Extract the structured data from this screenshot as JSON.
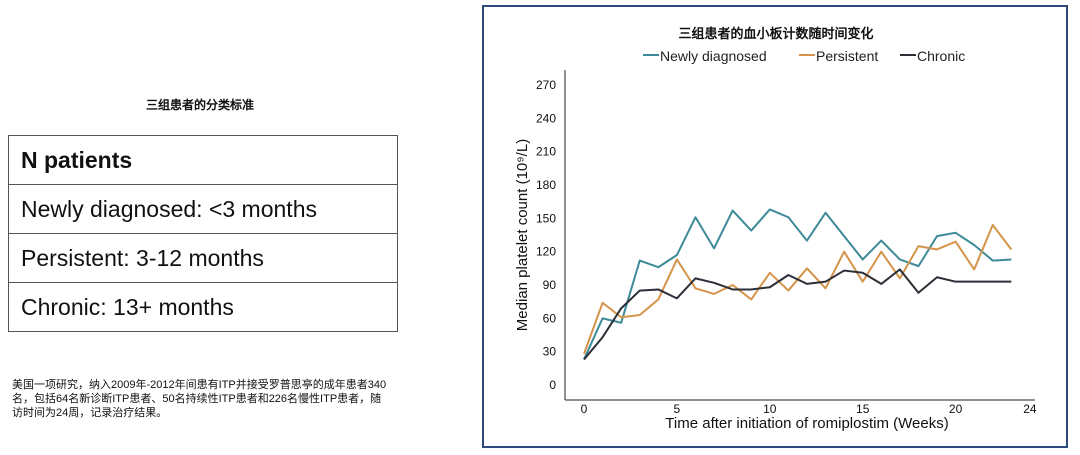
{
  "left": {
    "title": "三组患者的分类标准",
    "table": [
      "N patients",
      "Newly diagnosed: <3 months",
      "Persistent: 3-12 months",
      "Chronic: 13+ months"
    ],
    "note": "美国一项研究，纳入2009年-2012年间患有ITP并接受罗普思亭的成年患者340名，包括64名新诊断ITP患者、50名持续性ITP患者和226名慢性ITP患者，随访时间为24周，记录治疗结果。"
  },
  "chart_data": {
    "type": "line",
    "title": "三组患者的血小板计数随时间变化",
    "xlabel": "Time after initiation of romiplostim (Weeks)",
    "ylabel": "Median platelet count (10⁹/L)",
    "xlim": [
      -1,
      24
    ],
    "ylim": [
      0,
      270
    ],
    "xticks": [
      0,
      5,
      10,
      15,
      20,
      24
    ],
    "yticks": [
      0,
      30,
      60,
      90,
      120,
      150,
      180,
      210,
      240,
      270
    ],
    "legend_position": "top",
    "grid": false,
    "x": [
      0,
      1,
      2,
      3,
      4,
      5,
      6,
      7,
      8,
      9,
      10,
      11,
      12,
      13,
      14,
      15,
      16,
      17,
      18,
      19,
      20,
      21,
      22,
      23
    ],
    "series": [
      {
        "name": "Newly diagnosed",
        "color": "#3e8a99",
        "values": [
          23,
          60,
          56,
          112,
          106,
          117,
          151,
          123,
          157,
          139,
          158,
          151,
          130,
          155,
          134,
          113,
          130,
          113,
          107,
          134,
          137,
          126,
          112,
          113
        ]
      },
      {
        "name": "Persistent",
        "color": "#d4944a",
        "values": [
          28,
          74,
          61,
          63,
          77,
          113,
          87,
          82,
          90,
          77,
          101,
          85,
          105,
          87,
          120,
          93,
          120,
          96,
          125,
          122,
          129,
          104,
          144,
          122
        ]
      },
      {
        "name": "Chronic",
        "color": "#2b2f38",
        "values": [
          23,
          43,
          69,
          85,
          86,
          78,
          96,
          92,
          86,
          86,
          88,
          99,
          91,
          93,
          103,
          101,
          91,
          104,
          83,
          97,
          93,
          93,
          93,
          93
        ]
      }
    ]
  }
}
